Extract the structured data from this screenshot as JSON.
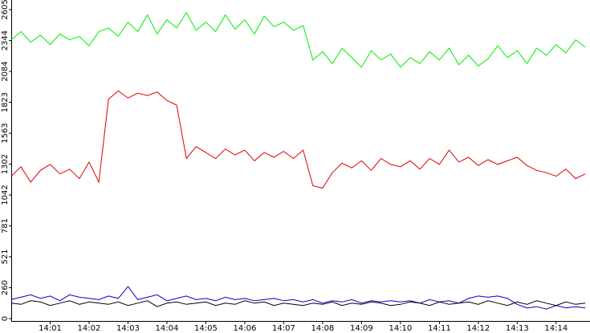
{
  "chart_data": {
    "type": "line",
    "x": [
      0,
      0.25,
      0.5,
      0.75,
      1,
      1.25,
      1.5,
      1.75,
      2,
      2.25,
      2.5,
      2.75,
      3,
      3.25,
      3.5,
      3.75,
      4,
      4.25,
      4.5,
      4.75,
      5,
      5.25,
      5.5,
      5.75,
      6,
      6.25,
      6.5,
      6.75,
      7,
      7.25,
      7.5,
      7.75,
      8,
      8.25,
      8.5,
      8.75,
      9,
      9.25,
      9.5,
      9.75,
      10,
      10.25,
      10.5,
      10.75,
      11,
      11.25,
      11.5,
      11.75,
      12,
      12.25,
      12.5,
      12.75,
      13,
      13.25,
      13.5,
      13.75,
      14,
      14.25,
      14.5,
      14.75
    ],
    "series": [
      {
        "color": "#00ee00",
        "values": [
          2350,
          2420,
          2330,
          2390,
          2310,
          2400,
          2350,
          2380,
          2300,
          2420,
          2450,
          2380,
          2500,
          2420,
          2560,
          2400,
          2520,
          2450,
          2580,
          2430,
          2500,
          2420,
          2560,
          2440,
          2520,
          2400,
          2550,
          2460,
          2500,
          2430,
          2470,
          2180,
          2250,
          2150,
          2280,
          2200,
          2120,
          2260,
          2180,
          2230,
          2120,
          2200,
          2150,
          2250,
          2180,
          2280,
          2140,
          2220,
          2130,
          2190,
          2300,
          2200,
          2260,
          2150,
          2280,
          2220,
          2310,
          2240,
          2350,
          2290
        ]
      },
      {
        "color": "#dd0000",
        "values": [
          1200,
          1280,
          1150,
          1250,
          1300,
          1220,
          1260,
          1180,
          1320,
          1150,
          1850,
          1920,
          1860,
          1900,
          1880,
          1910,
          1840,
          1800,
          1350,
          1450,
          1400,
          1350,
          1430,
          1380,
          1420,
          1330,
          1400,
          1360,
          1410,
          1350,
          1420,
          1120,
          1100,
          1230,
          1310,
          1270,
          1330,
          1250,
          1350,
          1300,
          1280,
          1330,
          1260,
          1350,
          1300,
          1420,
          1320,
          1360,
          1290,
          1340,
          1300,
          1330,
          1360,
          1290,
          1250,
          1230,
          1200,
          1260,
          1180,
          1220
        ]
      },
      {
        "color": "#0000cc",
        "values": [
          160,
          180,
          200,
          170,
          190,
          150,
          200,
          180,
          170,
          160,
          190,
          170,
          270,
          160,
          180,
          200,
          150,
          170,
          190,
          160,
          170,
          150,
          180,
          160,
          170,
          150,
          160,
          170,
          150,
          160,
          140,
          160,
          130,
          150,
          140,
          160,
          130,
          150,
          140,
          150,
          140,
          150,
          130,
          160,
          140,
          150,
          130,
          170,
          190,
          180,
          190,
          170,
          120,
          90,
          100,
          80,
          110,
          90,
          100,
          90
        ]
      },
      {
        "color": "#000000",
        "values": [
          130,
          120,
          150,
          140,
          110,
          130,
          150,
          120,
          140,
          130,
          120,
          140,
          110,
          130,
          150,
          100,
          130,
          140,
          120,
          130,
          140,
          110,
          130,
          120,
          150,
          130,
          140,
          110,
          130,
          120,
          110,
          130,
          120,
          140,
          110,
          130,
          120,
          140,
          130,
          110,
          120,
          140,
          130,
          110,
          140,
          120,
          130,
          140,
          120,
          150,
          130,
          110,
          140,
          120,
          150,
          130,
          110,
          140,
          120,
          130
        ]
      }
    ],
    "xlim": [
      0,
      14.87
    ],
    "xticks": [
      {
        "value": 1,
        "label": "14:01"
      },
      {
        "value": 2,
        "label": "14:02"
      },
      {
        "value": 3,
        "label": "14:03"
      },
      {
        "value": 4,
        "label": "14:04"
      },
      {
        "value": 5,
        "label": "14:05"
      },
      {
        "value": 6,
        "label": "14:06"
      },
      {
        "value": 7,
        "label": "14:07"
      },
      {
        "value": 8,
        "label": "14:08"
      },
      {
        "value": 9,
        "label": "14:09"
      },
      {
        "value": 10,
        "label": "14:10"
      },
      {
        "value": 11,
        "label": "14:11"
      },
      {
        "value": 12,
        "label": "14:12"
      },
      {
        "value": 13,
        "label": "14:13"
      },
      {
        "value": 14,
        "label": "14:14"
      }
    ],
    "ylim": [
      0,
      2605
    ],
    "yticks": [
      0,
      260,
      521,
      781,
      1042,
      1302,
      1563,
      1823,
      2084,
      2344,
      2605
    ]
  }
}
